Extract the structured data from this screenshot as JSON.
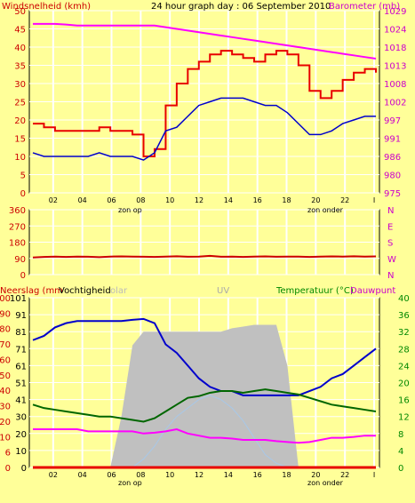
{
  "colors": {
    "background": "#ffff99",
    "plot_bg": "#ffff99",
    "grid": "#ffffff",
    "wind_gust": "#e80000",
    "wind_avg": "#0000cc",
    "barometer": "#ff00ff",
    "direction": "#cc0000",
    "solar": "#c0c0c0",
    "uv": "#a8c8e8",
    "temperature": "#0000cc",
    "dewpoint": "#ff00ff",
    "humidity": "#006600",
    "rain": "#e80000",
    "title_color": "#000000",
    "left_axis_color": "#cc0000",
    "right_axis_color": "#cc00cc",
    "green_axis_color": "#008800"
  },
  "header": {
    "left_label": "Windsnelheid (kmh)",
    "title": "24 hour graph day : 06 September 2010",
    "right_label": "Barometer (mb)"
  },
  "panel3_header": {
    "rain_label": "Neerslag (mm",
    "humidity_label": "Vochtigheid",
    "solar_label": "olar",
    "uv_label": "UV",
    "temp_label": "Temperatuur (°C)",
    "dew_label": "Dauwpunt"
  },
  "annotations": {
    "sunrise": "zon op",
    "sunset": "zon onder"
  },
  "chart_data": [
    {
      "type": "line",
      "title": "24 hour graph day : 06 September 2010",
      "ylabel": "Windsnelheid (kmh)",
      "y2label": "Barometer (mb)",
      "x_ticks": [
        "02",
        "04",
        "06",
        "08",
        "10",
        "12",
        "14",
        "16",
        "18",
        "20",
        "22",
        "I"
      ],
      "ylim": [
        0,
        50
      ],
      "y_ticks": [
        "0",
        "5",
        "10",
        "15",
        "20",
        "25",
        "30",
        "35",
        "40",
        "45",
        "50"
      ],
      "y2lim": [
        975,
        1030
      ],
      "y2_ticks": [
        "975",
        "980",
        "986",
        "991",
        "997",
        "1002",
        "1008",
        "1013",
        "1018",
        "1024",
        "1029"
      ],
      "series": [
        {
          "name": "Windsnelheid (kmh)",
          "values": [
            19,
            18,
            17,
            17,
            17,
            17,
            18,
            17,
            17,
            16,
            10,
            12,
            24,
            30,
            34,
            36,
            38,
            39,
            38,
            37,
            36,
            38,
            39,
            38,
            35,
            28,
            26,
            28,
            31,
            33,
            34,
            33
          ]
        },
        {
          "name": "",
          "values": [
            11,
            10,
            10,
            10,
            10,
            10,
            11,
            10,
            10,
            10,
            9,
            11,
            17,
            18,
            21,
            24,
            25,
            26,
            26,
            26,
            25,
            24,
            24,
            22,
            19,
            16,
            16,
            17,
            19,
            20,
            21,
            21
          ]
        },
        {
          "name": "Barometer (mb)",
          "values": [
            1026,
            1026,
            1026,
            1025.8,
            1025.5,
            1025.5,
            1025.5,
            1025.5,
            1025.5,
            1025.5,
            1025.5,
            1025.5,
            1025,
            1024.5,
            1024,
            1023.5,
            1023,
            1022.5,
            1022,
            1021.5,
            1021,
            1020.5,
            1020,
            1019.5,
            1019,
            1018.5,
            1018,
            1017.5,
            1017,
            1016.5,
            1016,
            1015.5
          ]
        }
      ]
    },
    {
      "type": "line",
      "ylim": [
        0,
        360
      ],
      "y_ticks": [
        "0",
        "90",
        "180",
        "270",
        "360"
      ],
      "y2_ticks": [
        "N",
        "W",
        "S",
        "E",
        "N"
      ],
      "series": [
        {
          "name": "",
          "values": [
            95,
            98,
            100,
            98,
            100,
            99,
            97,
            100,
            101,
            100,
            99,
            98,
            100,
            102,
            99,
            100,
            104,
            99,
            100,
            98,
            100,
            101,
            99,
            100,
            100,
            98,
            100,
            101,
            100,
            102,
            100,
            101
          ]
        }
      ]
    },
    {
      "type": "line",
      "ylabel": "Neerslag (mm",
      "y2label": "Temperatuur (°C)",
      "ylim": [
        0,
        100
      ],
      "y_ticks": [
        "0",
        "6",
        "10",
        "20",
        "30",
        "40",
        "50",
        "60",
        "70",
        "80",
        "90",
        "100"
      ],
      "y_mid_ticks": [
        "0",
        "10",
        "20",
        "30",
        "40",
        "50",
        "60",
        "70",
        "80",
        "90",
        "100"
      ],
      "y_mid_ticks_display": [
        "0",
        "10",
        "20",
        "30",
        "41",
        "51",
        "61",
        "71",
        "81",
        "91",
        "101"
      ],
      "y2lim": [
        0,
        40
      ],
      "y2_ticks": [
        "0",
        "4",
        "8",
        "12",
        "16",
        "20",
        "24",
        "28",
        "32",
        "36",
        "40"
      ],
      "series": [
        {
          "name": "Temperatuur (°C)",
          "values": [
            30,
            31,
            33,
            34,
            34.5,
            34.5,
            34.5,
            34.5,
            34.5,
            34.8,
            35,
            34,
            29,
            27,
            24,
            21,
            19,
            18,
            18,
            17,
            17,
            17,
            17,
            17,
            17,
            18,
            19,
            21,
            22,
            24,
            26,
            28
          ]
        },
        {
          "name": "Vochtigheid",
          "values": [
            37,
            35,
            34,
            33,
            32,
            31,
            30,
            30,
            29,
            28,
            27,
            29,
            33,
            37,
            41,
            42,
            44,
            45,
            45,
            44,
            45,
            46,
            45,
            44,
            43,
            41,
            39,
            37,
            36,
            35,
            34,
            33
          ]
        },
        {
          "name": "Dauwpunt",
          "values": [
            9,
            9,
            9,
            9,
            9,
            8.5,
            8.5,
            8.5,
            8.5,
            8.5,
            8,
            8.2,
            8.5,
            9,
            8,
            7.5,
            7,
            7,
            6.8,
            6.5,
            6.5,
            6.5,
            6.2,
            6,
            5.8,
            6,
            6.5,
            7,
            7,
            7.2,
            7.5,
            7.5
          ]
        },
        {
          "name": "Solar",
          "values": [
            0,
            0,
            0,
            0,
            0,
            0,
            0,
            0,
            30,
            72,
            80,
            80,
            80,
            80,
            80,
            80,
            80,
            80,
            82,
            83,
            84,
            84,
            84,
            60,
            0,
            0,
            0,
            0,
            0,
            0,
            0,
            0
          ]
        },
        {
          "name": "UV",
          "values": [
            0,
            0,
            0,
            0,
            0,
            0,
            0,
            0,
            0,
            0,
            2,
            5,
            9,
            12,
            14,
            16,
            17,
            16,
            14,
            11,
            7,
            3,
            1,
            0,
            0,
            0,
            0,
            0,
            0,
            0,
            0,
            0
          ]
        },
        {
          "name": "Neerslag (mm",
          "values": [
            0,
            0,
            0,
            0,
            0,
            0,
            0,
            0,
            0,
            0,
            0,
            0,
            0,
            0,
            0,
            0,
            0,
            0,
            0,
            0,
            0,
            0,
            0,
            0,
            0,
            0,
            0,
            0,
            0,
            0,
            0,
            0
          ]
        }
      ]
    }
  ]
}
